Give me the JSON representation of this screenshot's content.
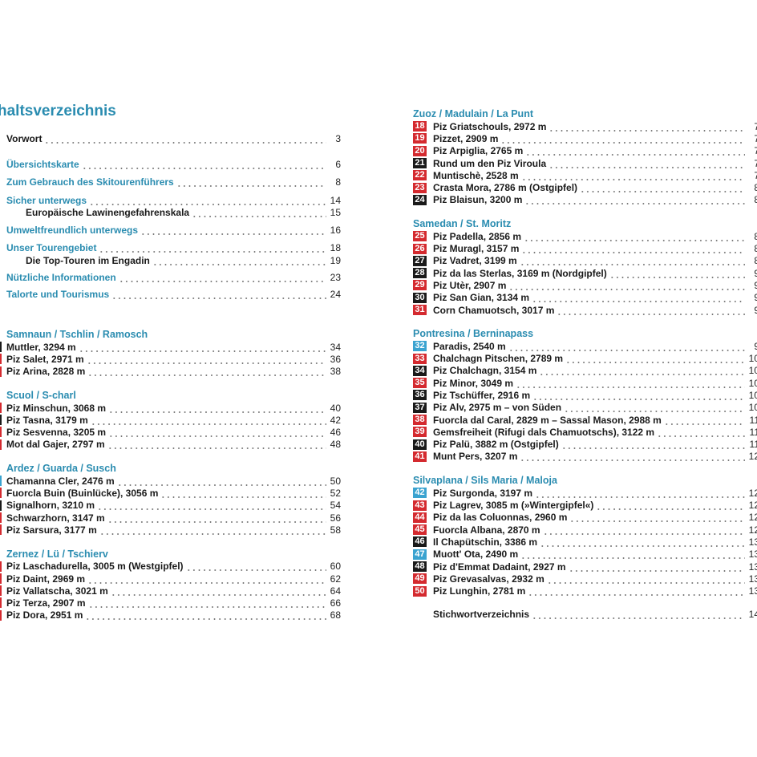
{
  "title": "haltsverzeichnis",
  "colors": {
    "teal": "#2a8cb0",
    "red": "#d42a2f",
    "black": "#1a1a1a",
    "blue": "#3aa3d0"
  },
  "intro": [
    {
      "label": "Vorwort",
      "page": "3",
      "style": "plain",
      "top": 0
    },
    {
      "label": "Übersichtskarte",
      "page": "6",
      "style": "teal"
    },
    {
      "label": "Zum Gebrauch des Skitourenführers",
      "page": "8",
      "style": "teal"
    },
    {
      "label": "Sicher unterwegs",
      "page": "14",
      "style": "teal"
    },
    {
      "label": "Europäische Lawinengefahrenskala",
      "page": "15",
      "style": "indent"
    },
    {
      "label": "Umweltfreundlich unterwegs",
      "page": "16",
      "style": "teal"
    },
    {
      "label": "Unser Tourengebiet",
      "page": "18",
      "style": "teal"
    },
    {
      "label": "Die Top-Touren im Engadin",
      "page": "19",
      "style": "indent"
    },
    {
      "label": "Nützliche Informationen",
      "page": "23",
      "style": "teal"
    },
    {
      "label": "Talorte und Tourismus",
      "page": "24",
      "style": "teal"
    }
  ],
  "left_sections": [
    {
      "header": "Samnaun / Tschlin / Ramosch",
      "items": [
        {
          "label": "Muttler, 3294 m",
          "page": "34",
          "badge_color": "black"
        },
        {
          "label": "Piz Salet, 2971 m",
          "page": "36",
          "badge_color": "red"
        },
        {
          "label": "Piz Arina, 2828 m",
          "page": "38",
          "badge_color": "red"
        }
      ]
    },
    {
      "header": "Scuol / S-charl",
      "items": [
        {
          "label": "Piz Minschun, 3068 m",
          "page": "40",
          "badge_color": "red"
        },
        {
          "label": "Piz Tasna, 3179 m",
          "page": "42",
          "badge_color": "black"
        },
        {
          "label": "Piz Sesvenna, 3205 m",
          "page": "46",
          "badge_color": "red"
        },
        {
          "label": "Mot dal Gajer, 2797 m",
          "page": "48",
          "badge_color": "red"
        }
      ]
    },
    {
      "header": "Ardez / Guarda / Susch",
      "items": [
        {
          "label": "Chamanna Cler, 2476 m",
          "page": "50",
          "badge_color": "blue"
        },
        {
          "label": "Fuorcla Buin (Buinlücke), 3056 m",
          "page": "52",
          "badge_color": "red"
        },
        {
          "label": "Signalhorn, 3210 m",
          "page": "54",
          "badge_color": "black"
        },
        {
          "label": "Schwarzhorn, 3147 m",
          "page": "56",
          "badge_color": "red"
        },
        {
          "label": "Piz Sarsura, 3177 m",
          "page": "58",
          "badge_color": "red"
        }
      ]
    },
    {
      "header": "Zernez / Lü / Tschierv",
      "items": [
        {
          "label": "Piz Laschadurella, 3005 m (Westgipfel)",
          "page": "60",
          "badge_color": "red"
        },
        {
          "label": "Piz Daint, 2969 m",
          "page": "62",
          "badge_color": "red"
        },
        {
          "label": "Piz Vallatscha, 3021 m",
          "page": "64",
          "badge_color": "red"
        },
        {
          "label": "Piz Terza, 2907 m",
          "page": "66",
          "badge_color": "red"
        },
        {
          "label": "Piz Dora, 2951 m",
          "page": "68",
          "badge_color": "red"
        }
      ]
    }
  ],
  "right_sections": [
    {
      "header": "Zuoz / Madulain / La Punt",
      "items": [
        {
          "num": "18",
          "label": "Piz Griatschouls, 2972 m",
          "page": "7",
          "badge_color": "red"
        },
        {
          "num": "19",
          "label": "Pizzet, 2909 m",
          "page": "7",
          "badge_color": "red"
        },
        {
          "num": "20",
          "label": "Piz Arpiglia, 2765 m",
          "page": "7",
          "badge_color": "red"
        },
        {
          "num": "21",
          "label": "Rund um den Piz Viroula",
          "page": "7",
          "badge_color": "black"
        },
        {
          "num": "22",
          "label": "Muntischè, 2528 m",
          "page": "7",
          "badge_color": "red"
        },
        {
          "num": "23",
          "label": "Crasta Mora, 2786 m (Ostgipfel)",
          "page": "8",
          "badge_color": "red"
        },
        {
          "num": "24",
          "label": "Piz Blaisun, 3200 m",
          "page": "8",
          "badge_color": "black"
        }
      ]
    },
    {
      "header": "Samedan / St. Moritz",
      "items": [
        {
          "num": "25",
          "label": "Piz Padella, 2856 m",
          "page": "8",
          "badge_color": "red"
        },
        {
          "num": "26",
          "label": "Piz Muragl, 3157 m",
          "page": "8",
          "badge_color": "red"
        },
        {
          "num": "27",
          "label": "Piz Vadret, 3199 m",
          "page": "8",
          "badge_color": "black"
        },
        {
          "num": "28",
          "label": "Piz da las Sterlas, 3169 m (Nordgipfel)",
          "page": "9",
          "badge_color": "black"
        },
        {
          "num": "29",
          "label": "Piz Utèr, 2907 m",
          "page": "9",
          "badge_color": "red"
        },
        {
          "num": "30",
          "label": "Piz San Gian, 3134 m",
          "page": "9",
          "badge_color": "black"
        },
        {
          "num": "31",
          "label": "Corn Chamuotsch, 3017 m",
          "page": "9",
          "badge_color": "red"
        }
      ]
    },
    {
      "header": "Pontresina / Berninapass",
      "items": [
        {
          "num": "32",
          "label": "Paradis, 2540 m",
          "page": "9",
          "badge_color": "blue"
        },
        {
          "num": "33",
          "label": "Chalchagn Pitschen, 2789 m",
          "page": "10",
          "badge_color": "red"
        },
        {
          "num": "34",
          "label": "Piz Chalchagn, 3154 m",
          "page": "10",
          "badge_color": "black"
        },
        {
          "num": "35",
          "label": "Piz Minor, 3049 m",
          "page": "10",
          "badge_color": "red"
        },
        {
          "num": "36",
          "label": "Piz Tschüffer, 2916 m",
          "page": "10",
          "badge_color": "black"
        },
        {
          "num": "37",
          "label": "Piz Alv, 2975 m – von Süden",
          "page": "10",
          "badge_color": "black"
        },
        {
          "num": "38",
          "label": "Fuorcla dal Caral, 2829 m – Sassal Mason, 2988 m",
          "page": "11",
          "badge_color": "red"
        },
        {
          "num": "39",
          "label": "Gemsfreiheit (Rifugi dals Chamuotschs), 3122 m",
          "page": "11",
          "badge_color": "red"
        },
        {
          "num": "40",
          "label": "Piz Palü, 3882 m (Ostgipfel)",
          "page": "11",
          "badge_color": "black"
        },
        {
          "num": "41",
          "label": "Munt Pers, 3207 m",
          "page": "12",
          "badge_color": "red"
        }
      ]
    },
    {
      "header": "Silvaplana / Sils Maria / Maloja",
      "items": [
        {
          "num": "42",
          "label": "Piz Surgonda, 3197 m",
          "page": "12",
          "badge_color": "blue"
        },
        {
          "num": "43",
          "label": "Piz Lagrev, 3085 m (»Wintergipfel«)",
          "page": "12",
          "badge_color": "red"
        },
        {
          "num": "44",
          "label": "Piz da las Coluonnas, 2960 m",
          "page": "12",
          "badge_color": "red"
        },
        {
          "num": "45",
          "label": "Fuorcla Albana, 2870 m",
          "page": "12",
          "badge_color": "red"
        },
        {
          "num": "46",
          "label": "Il Chapütschin, 3386 m",
          "page": "13",
          "badge_color": "black"
        },
        {
          "num": "47",
          "label": "Muott' Ota, 2490 m",
          "page": "13",
          "badge_color": "blue"
        },
        {
          "num": "48",
          "label": "Piz d'Emmat Dadaint, 2927 m",
          "page": "13",
          "badge_color": "black"
        },
        {
          "num": "49",
          "label": "Piz Grevasalvas, 2932 m",
          "page": "13",
          "badge_color": "red"
        },
        {
          "num": "50",
          "label": "Piz Lunghin, 2781 m",
          "page": "13",
          "badge_color": "red"
        }
      ]
    }
  ],
  "index_entry": {
    "label": "Stichwortverzeichnis",
    "page": "14"
  }
}
